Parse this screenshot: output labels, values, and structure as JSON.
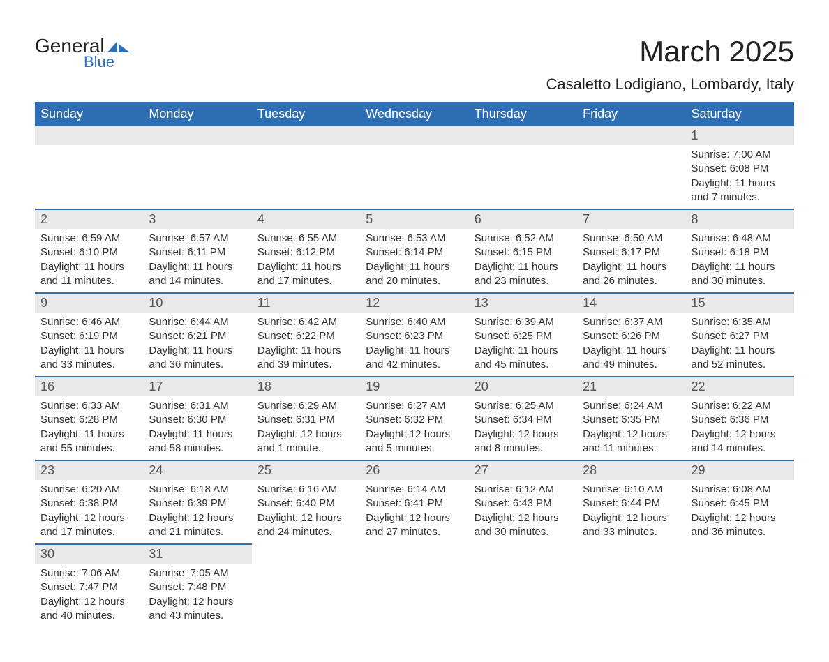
{
  "logo": {
    "general": "General",
    "blue": "Blue"
  },
  "title": "March 2025",
  "location": "Casaletto Lodigiano, Lombardy, Italy",
  "colors": {
    "header_bg": "#2e6eb5",
    "header_text": "#ffffff",
    "daynum_bg": "#e9e9e9",
    "divider": "#2e6eb5",
    "logo_blue": "#2e6eb5"
  },
  "weekdays": [
    "Sunday",
    "Monday",
    "Tuesday",
    "Wednesday",
    "Thursday",
    "Friday",
    "Saturday"
  ],
  "weeks": [
    [
      {
        "n": "",
        "sr": "",
        "ss": "",
        "dl": ""
      },
      {
        "n": "",
        "sr": "",
        "ss": "",
        "dl": ""
      },
      {
        "n": "",
        "sr": "",
        "ss": "",
        "dl": ""
      },
      {
        "n": "",
        "sr": "",
        "ss": "",
        "dl": ""
      },
      {
        "n": "",
        "sr": "",
        "ss": "",
        "dl": ""
      },
      {
        "n": "",
        "sr": "",
        "ss": "",
        "dl": ""
      },
      {
        "n": "1",
        "sr": "Sunrise: 7:00 AM",
        "ss": "Sunset: 6:08 PM",
        "dl": "Daylight: 11 hours and 7 minutes."
      }
    ],
    [
      {
        "n": "2",
        "sr": "Sunrise: 6:59 AM",
        "ss": "Sunset: 6:10 PM",
        "dl": "Daylight: 11 hours and 11 minutes."
      },
      {
        "n": "3",
        "sr": "Sunrise: 6:57 AM",
        "ss": "Sunset: 6:11 PM",
        "dl": "Daylight: 11 hours and 14 minutes."
      },
      {
        "n": "4",
        "sr": "Sunrise: 6:55 AM",
        "ss": "Sunset: 6:12 PM",
        "dl": "Daylight: 11 hours and 17 minutes."
      },
      {
        "n": "5",
        "sr": "Sunrise: 6:53 AM",
        "ss": "Sunset: 6:14 PM",
        "dl": "Daylight: 11 hours and 20 minutes."
      },
      {
        "n": "6",
        "sr": "Sunrise: 6:52 AM",
        "ss": "Sunset: 6:15 PM",
        "dl": "Daylight: 11 hours and 23 minutes."
      },
      {
        "n": "7",
        "sr": "Sunrise: 6:50 AM",
        "ss": "Sunset: 6:17 PM",
        "dl": "Daylight: 11 hours and 26 minutes."
      },
      {
        "n": "8",
        "sr": "Sunrise: 6:48 AM",
        "ss": "Sunset: 6:18 PM",
        "dl": "Daylight: 11 hours and 30 minutes."
      }
    ],
    [
      {
        "n": "9",
        "sr": "Sunrise: 6:46 AM",
        "ss": "Sunset: 6:19 PM",
        "dl": "Daylight: 11 hours and 33 minutes."
      },
      {
        "n": "10",
        "sr": "Sunrise: 6:44 AM",
        "ss": "Sunset: 6:21 PM",
        "dl": "Daylight: 11 hours and 36 minutes."
      },
      {
        "n": "11",
        "sr": "Sunrise: 6:42 AM",
        "ss": "Sunset: 6:22 PM",
        "dl": "Daylight: 11 hours and 39 minutes."
      },
      {
        "n": "12",
        "sr": "Sunrise: 6:40 AM",
        "ss": "Sunset: 6:23 PM",
        "dl": "Daylight: 11 hours and 42 minutes."
      },
      {
        "n": "13",
        "sr": "Sunrise: 6:39 AM",
        "ss": "Sunset: 6:25 PM",
        "dl": "Daylight: 11 hours and 45 minutes."
      },
      {
        "n": "14",
        "sr": "Sunrise: 6:37 AM",
        "ss": "Sunset: 6:26 PM",
        "dl": "Daylight: 11 hours and 49 minutes."
      },
      {
        "n": "15",
        "sr": "Sunrise: 6:35 AM",
        "ss": "Sunset: 6:27 PM",
        "dl": "Daylight: 11 hours and 52 minutes."
      }
    ],
    [
      {
        "n": "16",
        "sr": "Sunrise: 6:33 AM",
        "ss": "Sunset: 6:28 PM",
        "dl": "Daylight: 11 hours and 55 minutes."
      },
      {
        "n": "17",
        "sr": "Sunrise: 6:31 AM",
        "ss": "Sunset: 6:30 PM",
        "dl": "Daylight: 11 hours and 58 minutes."
      },
      {
        "n": "18",
        "sr": "Sunrise: 6:29 AM",
        "ss": "Sunset: 6:31 PM",
        "dl": "Daylight: 12 hours and 1 minute."
      },
      {
        "n": "19",
        "sr": "Sunrise: 6:27 AM",
        "ss": "Sunset: 6:32 PM",
        "dl": "Daylight: 12 hours and 5 minutes."
      },
      {
        "n": "20",
        "sr": "Sunrise: 6:25 AM",
        "ss": "Sunset: 6:34 PM",
        "dl": "Daylight: 12 hours and 8 minutes."
      },
      {
        "n": "21",
        "sr": "Sunrise: 6:24 AM",
        "ss": "Sunset: 6:35 PM",
        "dl": "Daylight: 12 hours and 11 minutes."
      },
      {
        "n": "22",
        "sr": "Sunrise: 6:22 AM",
        "ss": "Sunset: 6:36 PM",
        "dl": "Daylight: 12 hours and 14 minutes."
      }
    ],
    [
      {
        "n": "23",
        "sr": "Sunrise: 6:20 AM",
        "ss": "Sunset: 6:38 PM",
        "dl": "Daylight: 12 hours and 17 minutes."
      },
      {
        "n": "24",
        "sr": "Sunrise: 6:18 AM",
        "ss": "Sunset: 6:39 PM",
        "dl": "Daylight: 12 hours and 21 minutes."
      },
      {
        "n": "25",
        "sr": "Sunrise: 6:16 AM",
        "ss": "Sunset: 6:40 PM",
        "dl": "Daylight: 12 hours and 24 minutes."
      },
      {
        "n": "26",
        "sr": "Sunrise: 6:14 AM",
        "ss": "Sunset: 6:41 PM",
        "dl": "Daylight: 12 hours and 27 minutes."
      },
      {
        "n": "27",
        "sr": "Sunrise: 6:12 AM",
        "ss": "Sunset: 6:43 PM",
        "dl": "Daylight: 12 hours and 30 minutes."
      },
      {
        "n": "28",
        "sr": "Sunrise: 6:10 AM",
        "ss": "Sunset: 6:44 PM",
        "dl": "Daylight: 12 hours and 33 minutes."
      },
      {
        "n": "29",
        "sr": "Sunrise: 6:08 AM",
        "ss": "Sunset: 6:45 PM",
        "dl": "Daylight: 12 hours and 36 minutes."
      }
    ],
    [
      {
        "n": "30",
        "sr": "Sunrise: 7:06 AM",
        "ss": "Sunset: 7:47 PM",
        "dl": "Daylight: 12 hours and 40 minutes."
      },
      {
        "n": "31",
        "sr": "Sunrise: 7:05 AM",
        "ss": "Sunset: 7:48 PM",
        "dl": "Daylight: 12 hours and 43 minutes."
      },
      {
        "n": "",
        "sr": "",
        "ss": "",
        "dl": ""
      },
      {
        "n": "",
        "sr": "",
        "ss": "",
        "dl": ""
      },
      {
        "n": "",
        "sr": "",
        "ss": "",
        "dl": ""
      },
      {
        "n": "",
        "sr": "",
        "ss": "",
        "dl": ""
      },
      {
        "n": "",
        "sr": "",
        "ss": "",
        "dl": ""
      }
    ]
  ]
}
